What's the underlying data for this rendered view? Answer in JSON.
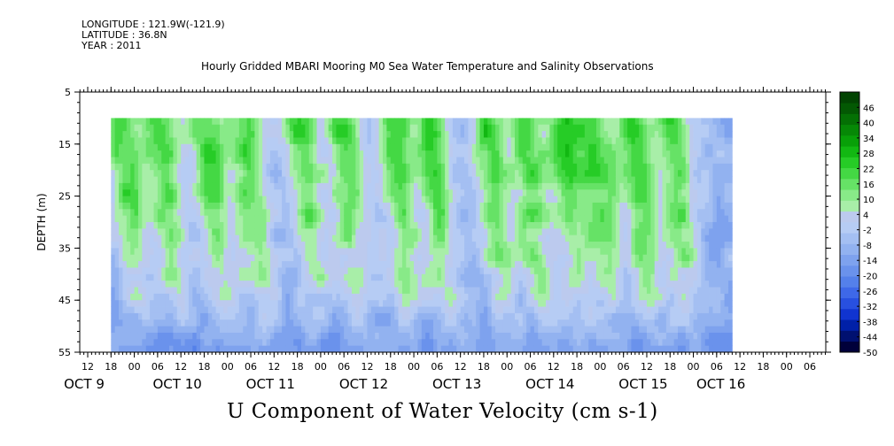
{
  "meta": {
    "longitude": "LONGITUDE : 121.9W(-121.9)",
    "latitude": "LATITUDE : 36.8N",
    "year": "YEAR : 2011"
  },
  "title": "Hourly Gridded MBARI Mooring M0 Sea Water Temperature and Salinity Observations",
  "variable_label": "U Component of Water Velocity (cm s-1)",
  "chart_data": {
    "type": "heatmap",
    "title": "Hourly Gridded MBARI Mooring M0 Sea Water Temperature and Salinity Observations",
    "xlabel": "",
    "ylabel": "DEPTH (m)",
    "colorbar_label": "U Component of Water Velocity (cm s-1)",
    "x_hour_ticks": [
      "12",
      "18",
      "00",
      "06",
      "12",
      "18",
      "00",
      "06",
      "12",
      "18",
      "00",
      "06",
      "12",
      "18",
      "00",
      "06",
      "12",
      "18",
      "00",
      "06",
      "12",
      "18",
      "00",
      "06",
      "12",
      "18",
      "00",
      "06",
      "12",
      "18",
      "00",
      "06"
    ],
    "x_date_labels": [
      "OCT  9",
      "OCT 10",
      "OCT 11",
      "OCT 12",
      "OCT 13",
      "OCT 14",
      "OCT 15",
      "OCT 16"
    ],
    "y_ticks": [
      "5",
      "15",
      "25",
      "35",
      "45",
      "55"
    ],
    "ylim": [
      5,
      55
    ],
    "y_inverted": true,
    "data_start": "2011-10-09 18:00",
    "data_end": "2011-10-16 10:00",
    "data_depth_range": [
      10,
      55
    ],
    "colorbar_levels": [
      "46",
      "40",
      "34",
      "28",
      "22",
      "16",
      "10",
      "4",
      "-2",
      "-8",
      "-14",
      "-20",
      "-26",
      "-32",
      "-38",
      "-44",
      "-50"
    ],
    "colorbar_min": -50,
    "colorbar_max": 52,
    "colorbar_colors": [
      "#00003a",
      "#001070",
      "#0020a8",
      "#1034d0",
      "#2850e0",
      "#3e68e8",
      "#5480ea",
      "#6a92ec",
      "#7ea2ee",
      "#92b2f0",
      "#a4bff2",
      "#b6ccf4",
      "#bccaee",
      "#a8eea8",
      "#88ea88",
      "#66e266",
      "#44d844",
      "#26cc26",
      "#12b812",
      "#08a008",
      "#068806",
      "#047004",
      "#035803",
      "#024402"
    ],
    "u_peak_times": [
      "OCT 9 20:00",
      "OCT 10 06:00",
      "OCT 10 18:00",
      "OCT 11 04:00",
      "OCT 11 18:00",
      "OCT 12 05:00",
      "OCT 12 18:00",
      "OCT 13 04:00",
      "OCT 13 18:00",
      "OCT 14 04:00",
      "OCT 14 14:00",
      "OCT 14 22:00",
      "OCT 15 08:00",
      "OCT 15 18:00"
    ]
  }
}
